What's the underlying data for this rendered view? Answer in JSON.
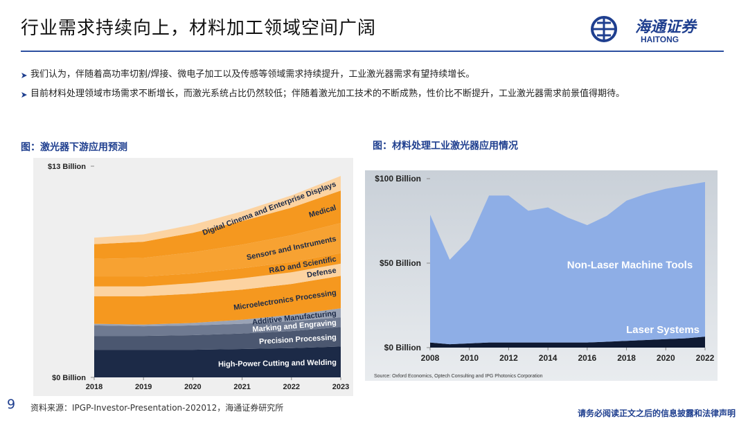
{
  "header": {
    "title": "行业需求持续向上，材料加工领域空间广阔",
    "logo_cn": "海通证券",
    "logo_en": "HAITONG"
  },
  "bullets": [
    "我们认为，伴随着高功率切割/焊接、微电子加工以及传感等领域需求持续提升，工业激光器需求有望持续增长。",
    "目前材料处理领域市场需求不断增长，而激光系统占比仍然较低；伴随着激光加工技术的不断成熟，性价比不断提升，工业激光器需求前景值得期待。"
  ],
  "chart_data": [
    {
      "type": "area",
      "stacked": true,
      "title": "图：激光器下游应用预测",
      "x": [
        2018,
        2019,
        2020,
        2021,
        2022,
        2023
      ],
      "xlim": [
        2018,
        2023
      ],
      "xticks": [
        2018,
        2019,
        2020,
        2021,
        2022,
        2023
      ],
      "ylim": [
        0,
        13
      ],
      "yticks": [
        {
          "value": 0,
          "label": "$0 Billion"
        },
        {
          "value": 13,
          "label": "$13 Billion"
        }
      ],
      "series": [
        {
          "name": "High-Power Cutting and Welding",
          "color": "#1c2a47",
          "values": [
            1.7,
            1.7,
            1.7,
            1.75,
            1.8,
            1.9
          ]
        },
        {
          "name": "Precision Processing",
          "color": "#4b5770",
          "values": [
            0.85,
            0.85,
            0.9,
            0.95,
            1.05,
            1.2
          ]
        },
        {
          "name": "Marking and Engraving",
          "color": "#6f7a91",
          "values": [
            0.65,
            0.6,
            0.6,
            0.6,
            0.6,
            0.6
          ]
        },
        {
          "name": "Additive Manufacturing",
          "color": "#9aa3b5",
          "values": [
            0.1,
            0.1,
            0.15,
            0.25,
            0.4,
            0.55
          ]
        },
        {
          "name": "Microelectronics Processing",
          "color": "#f5981f",
          "values": [
            1.7,
            1.75,
            1.8,
            1.85,
            1.9,
            2.0
          ]
        },
        {
          "name": "Defense",
          "color": "#fcd3a1",
          "values": [
            0.6,
            0.6,
            0.65,
            0.7,
            0.72,
            0.75
          ]
        },
        {
          "name": "R&D and Scientific",
          "color": "#f5981f",
          "values": [
            0.6,
            0.6,
            0.6,
            0.62,
            0.63,
            0.65
          ]
        },
        {
          "name": "Sensors and Instruments",
          "color": "#f7a232",
          "values": [
            1.1,
            1.15,
            1.3,
            1.45,
            1.65,
            1.85
          ]
        },
        {
          "name": "Medical",
          "color": "#f5981f",
          "values": [
            0.9,
            1.0,
            1.2,
            1.45,
            1.7,
            2.0
          ]
        },
        {
          "name": "Digital Cinema and Enterprise Displays",
          "color": "#fcd3a1",
          "values": [
            0.4,
            0.45,
            0.5,
            0.6,
            0.75,
            0.9
          ]
        }
      ]
    },
    {
      "type": "area",
      "stacked": true,
      "title": "图：材料处理工业激光器应用情况",
      "x": [
        2008,
        2009,
        2010,
        2011,
        2012,
        2013,
        2014,
        2015,
        2016,
        2017,
        2018,
        2019,
        2020,
        2021,
        2022
      ],
      "xlim": [
        2008,
        2022
      ],
      "xticks": [
        2008,
        2010,
        2012,
        2014,
        2016,
        2018,
        2020,
        2022
      ],
      "ylim": [
        0,
        100
      ],
      "yticks": [
        {
          "value": 0,
          "label": "$0 Billion"
        },
        {
          "value": 50,
          "label": "$50 Billion"
        },
        {
          "value": 100,
          "label": "$100 Billion"
        }
      ],
      "series": [
        {
          "name": "Laser Systems",
          "color": "#0f1a33",
          "values": [
            3,
            2,
            2.5,
            3,
            3,
            3,
            3,
            3,
            3,
            3.5,
            4,
            4.5,
            5,
            5.5,
            6.5
          ]
        },
        {
          "name": "Non-Laser Machine Tools",
          "color": "#8eaee6",
          "values": [
            75.7,
            50,
            61.5,
            87,
            87,
            78,
            80,
            74,
            69.5,
            74.5,
            83,
            86.5,
            89,
            90.5,
            91.5
          ]
        }
      ],
      "source": "Source: Oxford Economics, Optech Consulting and IPG Photonics Corporation"
    }
  ],
  "footer": {
    "page": 9,
    "source": "资料来源：IPGP-Investor-Presentation-202012，海通证券研究所",
    "disclaimer": "请务必阅读正文之后的信息披露和法律声明"
  }
}
